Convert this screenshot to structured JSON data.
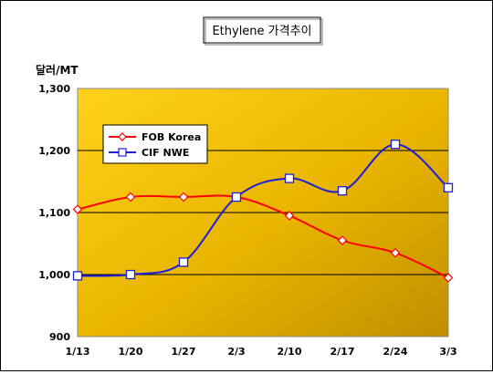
{
  "chart_data": {
    "type": "line",
    "title": "Ethylene 가격추이",
    "ylabel": "달러/MT",
    "xlabel": "",
    "categories": [
      "1/13",
      "1/20",
      "1/27",
      "2/3",
      "2/10",
      "2/17",
      "2/24",
      "3/3"
    ],
    "ylim": [
      900,
      1300
    ],
    "yticks": [
      900,
      1000,
      1100,
      1200,
      1300
    ],
    "ytick_labels": [
      "900",
      "1,000",
      "1,100",
      "1,200",
      "1,300"
    ],
    "grid": true,
    "legend_position": "top-left",
    "series": [
      {
        "name": "FOB Korea",
        "values": [
          1105,
          1125,
          1125,
          1125,
          1095,
          1055,
          1035,
          995
        ],
        "color": "#ff0000",
        "marker": "diamond"
      },
      {
        "name": "CIF NWE",
        "values": [
          998,
          1000,
          1020,
          1125,
          1155,
          1135,
          1210,
          1140
        ],
        "color": "#1f1fd6",
        "marker": "square"
      }
    ],
    "colors": {
      "plot_bg_light": "#ffe25a",
      "plot_bg_dark": "#c89a00"
    }
  }
}
